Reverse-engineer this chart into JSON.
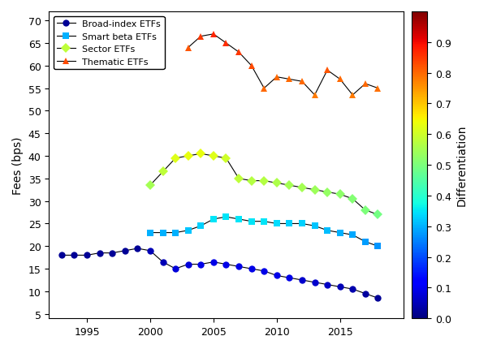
{
  "title": "",
  "ylabel": "Fees (bps)",
  "xlabel": "",
  "xlim": [
    1992,
    2020
  ],
  "ylim": [
    4,
    72
  ],
  "yticks": [
    5,
    10,
    15,
    20,
    25,
    30,
    35,
    40,
    45,
    50,
    55,
    60,
    65,
    70
  ],
  "xticks": [
    1995,
    2000,
    2005,
    2010,
    2015
  ],
  "broad_index": {
    "years": [
      1993,
      1994,
      1995,
      1996,
      1997,
      1998,
      1999,
      2000,
      2001,
      2002,
      2003,
      2004,
      2005,
      2006,
      2007,
      2008,
      2009,
      2010,
      2011,
      2012,
      2013,
      2014,
      2015,
      2016,
      2017,
      2018
    ],
    "fees": [
      18.0,
      18.0,
      18.0,
      18.5,
      18.5,
      19.0,
      19.5,
      19.0,
      16.5,
      15.0,
      16.0,
      16.0,
      16.5,
      16.0,
      15.5,
      15.0,
      14.5,
      13.5,
      13.0,
      12.5,
      12.0,
      11.5,
      11.0,
      10.5,
      9.5,
      8.5
    ],
    "diff": [
      0.02,
      0.02,
      0.02,
      0.02,
      0.02,
      0.02,
      0.02,
      0.05,
      0.05,
      0.08,
      0.08,
      0.09,
      0.09,
      0.09,
      0.09,
      0.09,
      0.09,
      0.09,
      0.09,
      0.07,
      0.07,
      0.06,
      0.05,
      0.04,
      0.03,
      0.02
    ],
    "marker": "o",
    "label": "Broad-index ETFs",
    "legend_diff": 0.02
  },
  "smart_beta": {
    "years": [
      2000,
      2001,
      2002,
      2003,
      2004,
      2005,
      2006,
      2007,
      2008,
      2009,
      2010,
      2011,
      2012,
      2013,
      2014,
      2015,
      2016,
      2017,
      2018
    ],
    "fees": [
      23.0,
      23.0,
      23.0,
      23.5,
      24.5,
      26.0,
      26.5,
      26.0,
      25.5,
      25.5,
      25.0,
      25.0,
      25.0,
      24.5,
      23.5,
      23.0,
      22.5,
      21.0,
      20.0
    ],
    "diff": [
      0.3,
      0.3,
      0.3,
      0.32,
      0.33,
      0.35,
      0.35,
      0.35,
      0.35,
      0.35,
      0.34,
      0.33,
      0.33,
      0.32,
      0.31,
      0.3,
      0.29,
      0.28,
      0.27
    ],
    "marker": "s",
    "label": "Smart beta ETFs",
    "legend_diff": 0.3
  },
  "sector": {
    "years": [
      2000,
      2001,
      2002,
      2003,
      2004,
      2005,
      2006,
      2007,
      2008,
      2009,
      2010,
      2011,
      2012,
      2013,
      2014,
      2015,
      2016,
      2017,
      2018
    ],
    "fees": [
      33.5,
      36.5,
      39.5,
      40.0,
      40.5,
      40.0,
      39.5,
      35.0,
      34.5,
      34.5,
      34.0,
      33.5,
      33.0,
      32.5,
      32.0,
      31.5,
      30.5,
      28.0,
      27.0
    ],
    "diff": [
      0.55,
      0.58,
      0.62,
      0.63,
      0.63,
      0.62,
      0.6,
      0.58,
      0.57,
      0.57,
      0.56,
      0.55,
      0.55,
      0.54,
      0.53,
      0.52,
      0.51,
      0.5,
      0.49
    ],
    "marker": "D",
    "label": "Sector ETFs",
    "legend_diff": 0.58
  },
  "thematic": {
    "years": [
      2003,
      2004,
      2005,
      2006,
      2007,
      2008,
      2009,
      2010,
      2011,
      2012,
      2013,
      2014,
      2015,
      2016,
      2017,
      2018
    ],
    "fees": [
      64.0,
      66.5,
      67.0,
      65.0,
      63.0,
      60.0,
      55.0,
      57.5,
      57.0,
      56.5,
      53.5,
      59.0,
      57.0,
      53.5,
      56.0,
      55.0
    ],
    "diff": [
      0.82,
      0.85,
      0.87,
      0.86,
      0.85,
      0.83,
      0.8,
      0.8,
      0.8,
      0.8,
      0.78,
      0.82,
      0.8,
      0.78,
      0.8,
      0.79
    ],
    "marker": "^",
    "label": "Thematic ETFs",
    "legend_diff": 0.83
  },
  "colorbar_label": "Differentiation",
  "colorbar_ticks": [
    0,
    0.1,
    0.2,
    0.3,
    0.4,
    0.5,
    0.6,
    0.7,
    0.8,
    0.9
  ],
  "cmap": "jet",
  "vmin": 0,
  "vmax": 1,
  "figsize": [
    6.01,
    4.31
  ],
  "dpi": 100
}
